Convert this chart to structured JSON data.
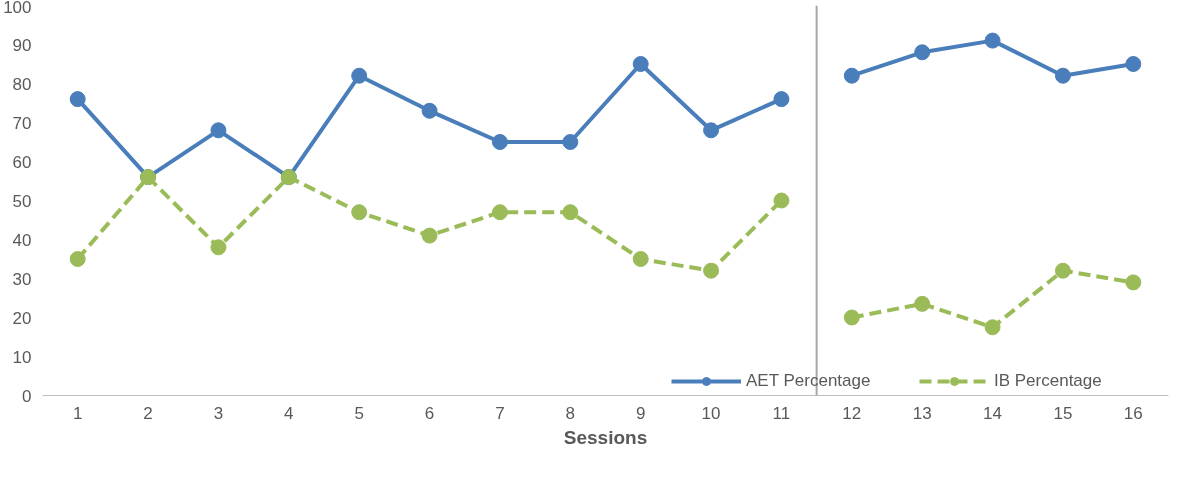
{
  "chart_data": {
    "type": "line",
    "xlabel": "Sessions",
    "x": [
      1,
      2,
      3,
      4,
      5,
      6,
      7,
      8,
      9,
      10,
      11,
      11.5,
      12,
      13,
      14,
      15,
      16
    ],
    "xlim": [
      0.5,
      16.5
    ],
    "xticks": [
      1,
      2,
      3,
      4,
      5,
      6,
      7,
      8,
      9,
      10,
      11,
      12,
      13,
      14,
      15,
      16
    ],
    "ylim": [
      0,
      100
    ],
    "yticks": [
      0,
      10,
      20,
      30,
      40,
      50,
      60,
      70,
      80,
      90,
      100
    ],
    "series": [
      {
        "name": "AET Percentage",
        "color": "#4a7ebb",
        "line_style": "solid",
        "values": [
          76,
          56,
          68,
          56,
          82,
          73,
          65,
          65,
          85,
          68,
          76,
          null,
          82,
          88,
          91,
          82,
          85
        ]
      },
      {
        "name": "IB Percentage",
        "color": "#9bbb59",
        "line_style": "dashed",
        "values": [
          35,
          56,
          38,
          56,
          47,
          41,
          47,
          47,
          35,
          32,
          50,
          null,
          20,
          23.5,
          17.5,
          32,
          29
        ]
      }
    ],
    "ref_lines": [
      {
        "axis": "x",
        "value": 11.5,
        "color": "#a6a6a6"
      }
    ],
    "marker": "circle",
    "grid": false,
    "legend": "bottom right"
  }
}
